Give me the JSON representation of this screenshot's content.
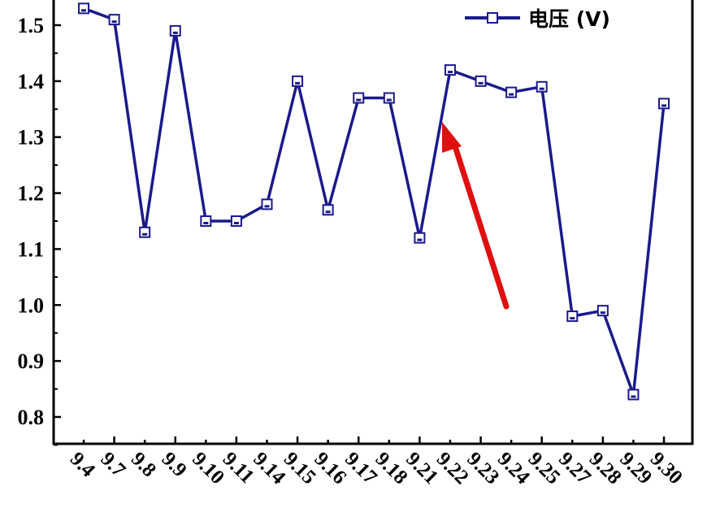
{
  "chart_data": {
    "type": "line",
    "categories": [
      "9.4",
      "9.7",
      "9.8",
      "9.9",
      "9.10",
      "9.11",
      "9.14",
      "9.15",
      "9.16",
      "9.17",
      "9.18",
      "9.21",
      "9.22",
      "9.23",
      "9.24",
      "9.25",
      "9.27",
      "9.28",
      "9.29",
      "9.30"
    ],
    "series": [
      {
        "name": "电压 (V)",
        "values": [
          1.53,
          1.51,
          1.13,
          1.49,
          1.15,
          1.15,
          1.18,
          1.4,
          1.17,
          1.37,
          1.37,
          1.12,
          1.42,
          1.4,
          1.38,
          1.39,
          0.98,
          0.99,
          0.84,
          1.36
        ],
        "color": "#1a1a8c",
        "marker": "square"
      }
    ],
    "yticks": [
      "0.8",
      "0.9",
      "1.0",
      "1.1",
      "1.2",
      "1.3",
      "1.4",
      "1.5"
    ],
    "ylim": [
      0.75,
      1.55
    ],
    "legend_position": "top-right",
    "annotation": {
      "type": "arrow",
      "color": "#e01010",
      "points_to_category": "9.22"
    },
    "grid": false
  }
}
